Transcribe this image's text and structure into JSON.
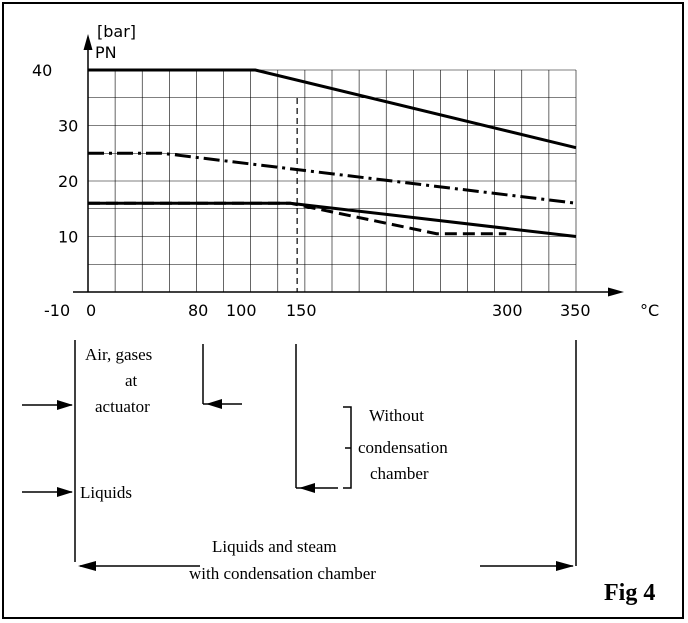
{
  "chart_data": {
    "type": "line",
    "xlabel": "°C",
    "ylabel_unit": "[bar]",
    "ylabel": "PN",
    "x_ticks": [
      "-10",
      "0",
      "80",
      "100",
      "150",
      "300",
      "350"
    ],
    "y_ticks": [
      "40",
      "30",
      "20",
      "10"
    ],
    "xlim": [
      -10,
      350
    ],
    "ylim": [
      0,
      40
    ],
    "grid": true,
    "series": [
      {
        "style": "solid",
        "points": [
          [
            0,
            40
          ],
          [
            120,
            40
          ],
          [
            350,
            26
          ]
        ]
      },
      {
        "style": "dash-dot",
        "points": [
          [
            0,
            25
          ],
          [
            53,
            25
          ],
          [
            350,
            16
          ]
        ]
      },
      {
        "style": "solid",
        "points": [
          [
            0,
            16
          ],
          [
            145,
            16
          ],
          [
            350,
            10
          ]
        ]
      },
      {
        "style": "dashed",
        "points": [
          [
            0,
            16
          ],
          [
            145,
            16
          ],
          [
            250,
            10.5
          ],
          [
            300,
            10.5
          ]
        ]
      }
    ],
    "reference_line": {
      "x": 150,
      "style": "dashed"
    },
    "annotations": {
      "air": [
        "Air, gases",
        "at",
        "actuator"
      ],
      "liquids": "Liquids",
      "without": [
        "Without",
        "condensation",
        "chamber"
      ],
      "with": [
        "Liquids and steam",
        "with condensation chamber"
      ]
    }
  },
  "figure_label": "Fig 4"
}
